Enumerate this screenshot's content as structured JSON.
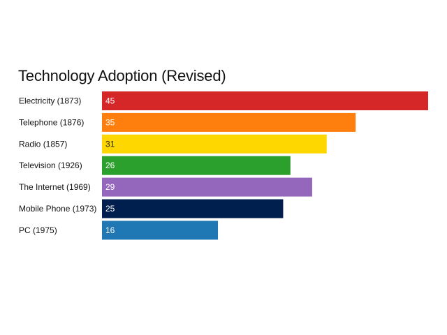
{
  "chart_data": {
    "type": "bar",
    "orientation": "horizontal",
    "title": "Technology Adoption (Revised)",
    "xlabel": "",
    "ylabel": "",
    "grid": false,
    "legend": "none",
    "xlim": [
      0,
      45
    ],
    "categories": [
      "Electricity (1873)",
      "Telephone (1876)",
      "Radio (1857)",
      "Television (1926)",
      "The Internet (1969)",
      "Mobile Phone (1973)",
      "PC (1975)"
    ],
    "values": [
      45,
      35,
      31,
      26,
      29,
      25,
      16
    ],
    "value_labels": [
      "45",
      "35",
      "31",
      "26",
      "29",
      "25",
      "16"
    ],
    "colors": [
      "#d62728",
      "#ff7f0e",
      "#ffd700",
      "#2ca02c",
      "#9467bd",
      "#001f4f",
      "#1f77b4"
    ],
    "label_colors": [
      "#ffffff",
      "#ffffff",
      "#222222",
      "#ffffff",
      "#ffffff",
      "#ffffff",
      "#ffffff"
    ]
  }
}
